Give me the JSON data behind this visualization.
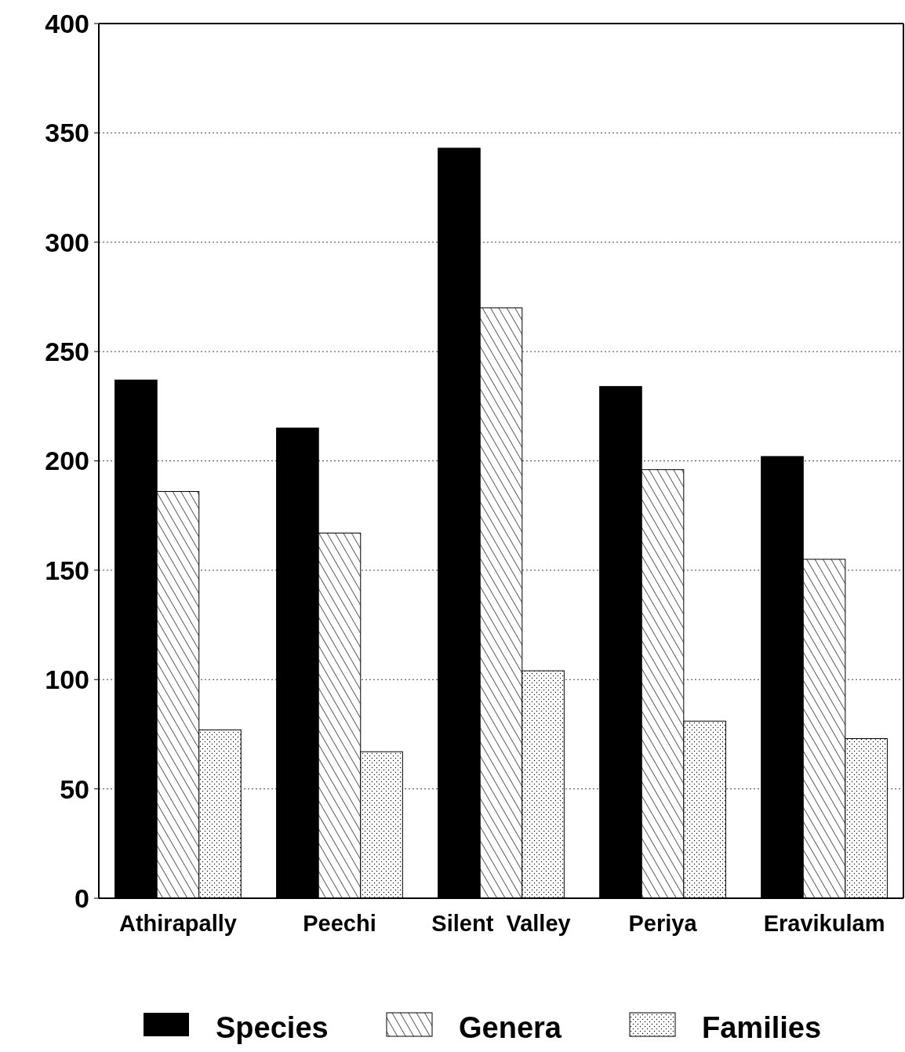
{
  "chart_data": {
    "type": "bar",
    "categories": [
      "Athirapally",
      "Peechi",
      "Silent  Valley",
      "Periya",
      "Eravikulam"
    ],
    "series": [
      {
        "name": "Species",
        "color": "#000000",
        "values": [
          237,
          215,
          343,
          234,
          202
        ]
      },
      {
        "name": "Genera",
        "color": "#000000",
        "values": [
          186,
          167,
          270,
          196,
          155
        ]
      },
      {
        "name": "Families",
        "color": "#000000",
        "values": [
          77,
          67,
          104,
          81,
          73
        ]
      }
    ],
    "ylim": [
      0,
      400
    ],
    "yticks": [
      0,
      50,
      100,
      150,
      200,
      250,
      300,
      350,
      400
    ],
    "grid": "y",
    "legend": "bottom"
  }
}
